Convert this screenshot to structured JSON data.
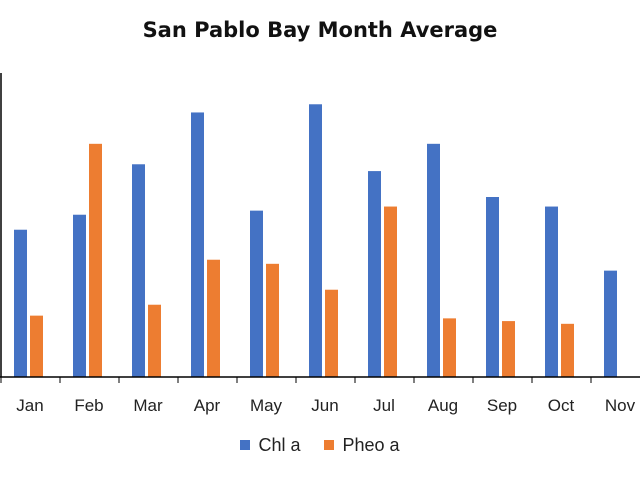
{
  "chart_data": {
    "type": "bar",
    "title": "San Pablo Bay Month Average",
    "xlabel": "",
    "ylabel": "",
    "categories": [
      "Jan",
      "Feb",
      "Mar",
      "Apr",
      "May",
      "Jun",
      "Jul",
      "Aug",
      "Sep",
      "Oct",
      "Nov"
    ],
    "series": [
      {
        "name": "Chl a",
        "color": "#4472C4",
        "values": [
          5.4,
          5.95,
          7.8,
          9.7,
          6.1,
          10.0,
          7.55,
          8.55,
          6.6,
          6.25,
          3.9
        ]
      },
      {
        "name": "Pheo a",
        "color": "#ED7D31",
        "values": [
          2.25,
          8.55,
          2.65,
          4.3,
          4.15,
          3.2,
          6.25,
          2.15,
          2.05,
          1.95,
          0.0
        ]
      }
    ],
    "ylim": [
      0,
      11
    ],
    "grid": false,
    "legend_position": "bottom"
  }
}
